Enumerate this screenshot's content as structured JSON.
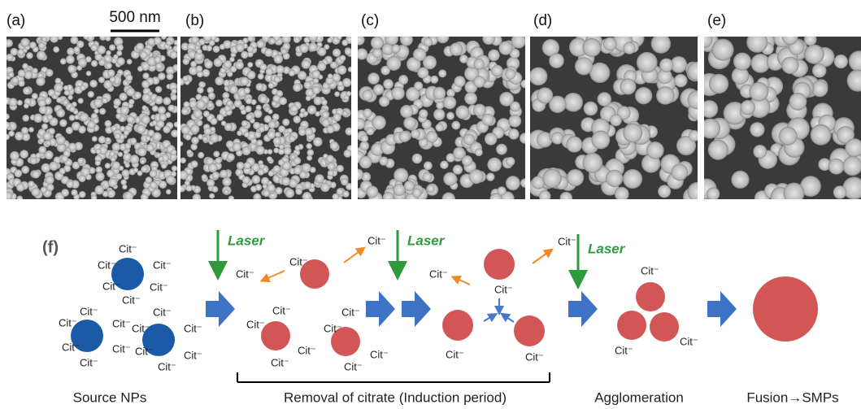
{
  "panels": {
    "labels": [
      "(a)",
      "(b)",
      "(c)",
      "(d)",
      "(e)"
    ],
    "scale_bar": "500 nm"
  },
  "scheme": {
    "label": "(f)",
    "laser": [
      "Laser",
      "Laser",
      "Laser"
    ],
    "citrate": [
      "Cit⁻",
      "Cit⁻",
      "Cit⁻",
      "Cit⁻",
      "Cit⁻",
      "Cit⁻",
      "Cit⁻",
      "Cit⁻",
      "Cit⁻",
      "Cit⁻",
      "Cit⁻",
      "Cit⁻",
      "Cit⁻",
      "Cit⁻",
      "Cit⁻",
      "Cit⁻",
      "Cit⁻",
      "Cit⁻",
      "Cit⁻",
      "Cit⁻",
      "Cit⁻",
      "Cit⁻",
      "Cit⁻",
      "Cit⁻",
      "Cit⁻",
      "Cit⁻",
      "Cit⁻",
      "Cit⁻",
      "Cit⁻",
      "Cit⁻",
      "Cit⁻",
      "Cit⁻",
      "Cit⁻",
      "Cit⁻",
      "Cit⁻",
      "Cit⁻",
      "Cit⁻"
    ],
    "stages": [
      "Source NPs",
      "Removal of citrate (Induction period)",
      "Agglomeration",
      "Fusion→SMPs"
    ]
  }
}
